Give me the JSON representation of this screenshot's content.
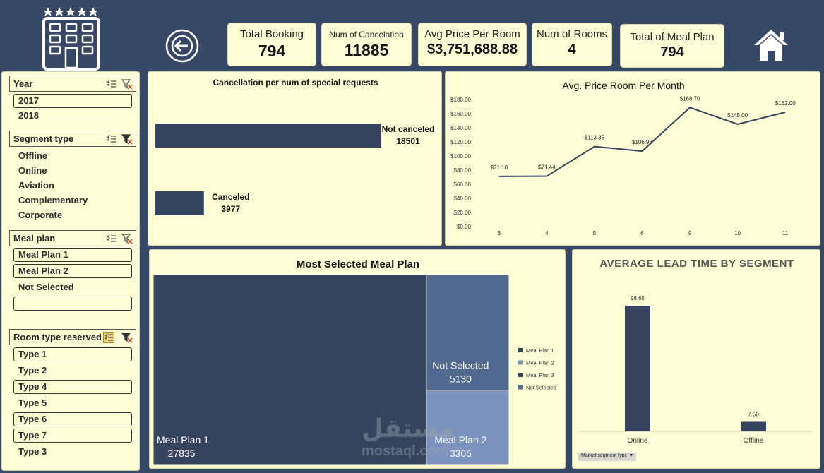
{
  "kpis": [
    {
      "label": "Total Booking",
      "value": "794"
    },
    {
      "label": "Num of Cancelation",
      "value": "11885"
    },
    {
      "label": "Avg Price Per Room",
      "value": "$3,751,688.88"
    },
    {
      "label": "Num of Rooms",
      "value": "4"
    },
    {
      "label": "Total of Meal Plan",
      "value": "794"
    }
  ],
  "icons": {
    "logo": "hotel-building-icon",
    "back": "back-arrow-icon",
    "home": "home-icon"
  },
  "slicers": {
    "year": {
      "title": "Year",
      "items": [
        "2017",
        "2018"
      ],
      "selected": [
        "2017"
      ]
    },
    "segment": {
      "title": "Segment type",
      "items": [
        "Offline",
        "Online",
        "Aviation",
        "Complementary",
        "Corporate"
      ]
    },
    "meal": {
      "title": "Meal plan",
      "items": [
        "Meal Plan 1",
        "Meal Plan 2",
        "Not Selected",
        ""
      ],
      "selected": [
        "Meal Plan 1",
        "Meal Plan 2",
        ""
      ]
    },
    "room": {
      "title": "Room type reserved",
      "items": [
        "Type 1",
        "Type 2",
        "Type 4",
        "Type 5",
        "Type 6",
        "Type 7",
        "Type 3"
      ],
      "selected": [
        "Type 1",
        "Type 4",
        "Type 6",
        "Type 7"
      ]
    }
  },
  "colors": {
    "bg": "#364865",
    "panel": "#fdfdd6",
    "navy": "#35435e",
    "meal2": "#7d93bf",
    "notsel": "#52698f"
  },
  "chart_data": [
    {
      "type": "bar",
      "orientation": "horizontal",
      "title": "Cancellation per num of special requests",
      "categories": [
        "Not canceled",
        "Canceled"
      ],
      "values": [
        18501,
        3977
      ]
    },
    {
      "type": "line",
      "title": "Avg. Price Room Per Month",
      "x": [
        "3",
        "4",
        "5",
        "6",
        "9",
        "10",
        "11"
      ],
      "values": [
        71.1,
        71.44,
        113.35,
        106.93,
        168.7,
        145.0,
        162.0
      ],
      "data_labels": [
        "$71.10",
        "$71.44",
        "$113.35",
        "$106.93",
        "$168.70",
        "$145.00",
        "$162.00"
      ],
      "ylim": [
        0,
        180
      ],
      "yticks": [
        "$0.00",
        "$20.00",
        "$40.00",
        "$60.00",
        "$80.00",
        "$100.00",
        "$120.00",
        "$140.00",
        "$160.00",
        "$180.00"
      ],
      "grid": false
    },
    {
      "type": "treemap",
      "title": "Most Selected Meal Plan",
      "categories": [
        "Meal Plan 1",
        "Not Selected",
        "Meal Plan 2"
      ],
      "values": [
        27835,
        5130,
        3305
      ],
      "legend": [
        "Meal Plan 1",
        "Meal Plan 2",
        "Meal Plan 3",
        "Not Selected"
      ],
      "legend_position": "right"
    },
    {
      "type": "bar",
      "title": "AVERAGE LEAD TIME BY SEGMENT",
      "categories": [
        "Online",
        "Offline"
      ],
      "values": [
        98.65,
        7.5
      ],
      "data_labels": [
        "98.65",
        "7.50"
      ],
      "filter_label": "Market segment type"
    }
  ],
  "watermark": {
    "arabic": "مستقل",
    "latin": "mostaql.com"
  }
}
